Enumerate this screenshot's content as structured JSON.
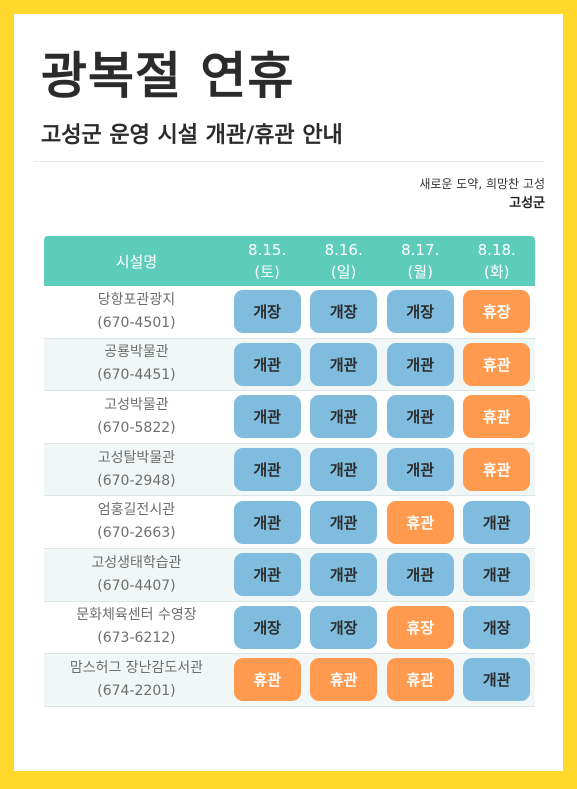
{
  "header": {
    "title": "광복절 연휴",
    "subtitle": "고성군 운영 시설 개관/휴관 안내",
    "slogan": "새로운 도약, 희망찬 고성",
    "org": "고성군"
  },
  "table": {
    "name_header": "시설명",
    "days": [
      {
        "date": "8.15.",
        "weekday": "(토)"
      },
      {
        "date": "8.16.",
        "weekday": "(일)"
      },
      {
        "date": "8.17.",
        "weekday": "(월)"
      },
      {
        "date": "8.18.",
        "weekday": "(화)"
      }
    ],
    "rows": [
      {
        "name": "당항포관광지",
        "phone": "(670-4501)",
        "cells": [
          "개장",
          "개장",
          "개장",
          "휴장"
        ],
        "status": [
          "open",
          "open",
          "open",
          "closed"
        ]
      },
      {
        "name": "공룡박물관",
        "phone": "(670-4451)",
        "cells": [
          "개관",
          "개관",
          "개관",
          "휴관"
        ],
        "status": [
          "open",
          "open",
          "open",
          "closed"
        ]
      },
      {
        "name": "고성박물관",
        "phone": "(670-5822)",
        "cells": [
          "개관",
          "개관",
          "개관",
          "휴관"
        ],
        "status": [
          "open",
          "open",
          "open",
          "closed"
        ]
      },
      {
        "name": "고성탈박물관",
        "phone": "(670-2948)",
        "cells": [
          "개관",
          "개관",
          "개관",
          "휴관"
        ],
        "status": [
          "open",
          "open",
          "open",
          "closed"
        ]
      },
      {
        "name": "엄홍길전시관",
        "phone": "(670-2663)",
        "cells": [
          "개관",
          "개관",
          "휴관",
          "개관"
        ],
        "status": [
          "open",
          "open",
          "closed",
          "open"
        ]
      },
      {
        "name": "고성생태학습관",
        "phone": "(670-4407)",
        "cells": [
          "개관",
          "개관",
          "개관",
          "개관"
        ],
        "status": [
          "open",
          "open",
          "open",
          "open"
        ]
      },
      {
        "name": "문화체육센터 수영장",
        "phone": "(673-6212)",
        "cells": [
          "개장",
          "개장",
          "휴장",
          "개장"
        ],
        "status": [
          "open",
          "open",
          "closed",
          "open"
        ]
      },
      {
        "name": "맘스허그 장난감도서관",
        "phone": "(674-2201)",
        "cells": [
          "휴관",
          "휴관",
          "휴관",
          "개관"
        ],
        "status": [
          "closed",
          "closed",
          "closed",
          "open"
        ]
      }
    ]
  },
  "colors": {
    "background": "#FFD82B",
    "header_bar": "#5ECCBB",
    "open_badge": "#7FBCDE",
    "closed_badge": "#FF9A4E"
  }
}
